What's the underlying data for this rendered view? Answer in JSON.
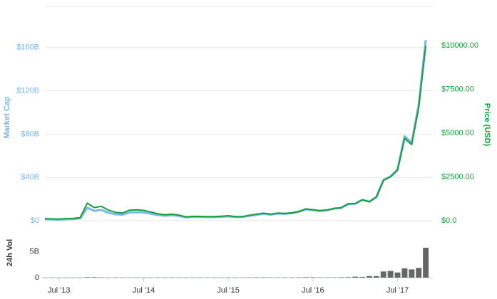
{
  "chart_data": [
    {
      "type": "line",
      "ylabel": "Market Cap",
      "y2label": "Price (USD)",
      "x": [
        "2013-05",
        "2013-06",
        "2013-07",
        "2013-08",
        "2013-09",
        "2013-10",
        "2013-11",
        "2013-12",
        "2014-01",
        "2014-02",
        "2014-03",
        "2014-04",
        "2014-05",
        "2014-06",
        "2014-07",
        "2014-08",
        "2014-09",
        "2014-10",
        "2014-11",
        "2014-12",
        "2015-01",
        "2015-02",
        "2015-03",
        "2015-04",
        "2015-05",
        "2015-06",
        "2015-07",
        "2015-08",
        "2015-09",
        "2015-10",
        "2015-11",
        "2015-12",
        "2016-01",
        "2016-02",
        "2016-03",
        "2016-04",
        "2016-05",
        "2016-06",
        "2016-07",
        "2016-08",
        "2016-09",
        "2016-10",
        "2016-11",
        "2016-12",
        "2017-01",
        "2017-02",
        "2017-03",
        "2017-04",
        "2017-05",
        "2017-06",
        "2017-07",
        "2017-08",
        "2017-09",
        "2017-10",
        "2017-11"
      ],
      "series": [
        {
          "color": "#7cb5ec",
          "axis": "y",
          "values": [
            1.3,
            1.1,
            1.0,
            1.4,
            1.5,
            2.1,
            12,
            9.1,
            10,
            7.4,
            6,
            5.5,
            7.6,
            7.9,
            7.6,
            6.5,
            5.2,
            4.6,
            5.0,
            4.4,
            3.0,
            3.5,
            3.4,
            3.2,
            3.3,
            3.6,
            4.1,
            3.3,
            3.4,
            4.5,
            5.4,
            6.4,
            5.6,
            6.6,
            6.3,
            6.9,
            8.2,
            10.5,
            9.8,
            9.1,
            9.7,
            11.2,
            11.8,
            15.4,
            15.7,
            19.3,
            17.6,
            22,
            37.7,
            41,
            47.5,
            78,
            72,
            107.5,
            167
          ]
        },
        {
          "color": "#15a03c",
          "axis": "y2",
          "values": [
            120,
            100,
            90,
            120,
            130,
            180,
            1000,
            750,
            820,
            600,
            480,
            440,
            600,
            620,
            590,
            500,
            390,
            340,
            370,
            320,
            220,
            250,
            245,
            230,
            235,
            255,
            285,
            230,
            235,
            310,
            370,
            430,
            370,
            435,
            415,
            450,
            530,
            670,
            625,
            575,
            610,
            700,
            740,
            960,
            970,
            1190,
            1080,
            1350,
            2300,
            2500,
            2875,
            4700,
            4340,
            6450,
            10000
          ]
        }
      ],
      "xlim": [
        "2013-05",
        "2017-12"
      ],
      "xticks": [
        {
          "value": "2013-07",
          "label": "Jul '13"
        },
        {
          "value": "2014-07",
          "label": "Jul '14"
        },
        {
          "value": "2015-07",
          "label": "Jul '15"
        },
        {
          "value": "2016-07",
          "label": "Jul '16"
        },
        {
          "value": "2017-07",
          "label": "Jul '17"
        }
      ],
      "ylim": [
        0,
        198
      ],
      "yticks": [
        {
          "value": 0,
          "label": "$0"
        },
        {
          "value": 40,
          "label": "$40B"
        },
        {
          "value": 80,
          "label": "$80B"
        },
        {
          "value": 120,
          "label": "$120B"
        },
        {
          "value": 160,
          "label": "$160B"
        }
      ],
      "y2lim": [
        0,
        12240
      ],
      "y2ticks": [
        {
          "value": 0,
          "label": "$0.0"
        },
        {
          "value": 2500,
          "label": "$2500.00"
        },
        {
          "value": 5000,
          "label": "$5000.00"
        },
        {
          "value": 7500,
          "label": "$7500.00"
        },
        {
          "value": 10000,
          "label": "$10000.00"
        }
      ],
      "grid": true
    },
    {
      "type": "bar",
      "ylabel": "24h Vol",
      "x": [
        "2013-05",
        "2013-06",
        "2013-07",
        "2013-08",
        "2013-09",
        "2013-10",
        "2013-11",
        "2013-12",
        "2014-01",
        "2014-02",
        "2014-03",
        "2014-04",
        "2014-05",
        "2014-06",
        "2014-07",
        "2014-08",
        "2014-09",
        "2014-10",
        "2014-11",
        "2014-12",
        "2015-01",
        "2015-02",
        "2015-03",
        "2015-04",
        "2015-05",
        "2015-06",
        "2015-07",
        "2015-08",
        "2015-09",
        "2015-10",
        "2015-11",
        "2015-12",
        "2016-01",
        "2016-02",
        "2016-03",
        "2016-04",
        "2016-05",
        "2016-06",
        "2016-07",
        "2016-08",
        "2016-09",
        "2016-10",
        "2016-11",
        "2016-12",
        "2017-01",
        "2017-02",
        "2017-03",
        "2017-04",
        "2017-05",
        "2017-06",
        "2017-07",
        "2017-08",
        "2017-09",
        "2017-10",
        "2017-11"
      ],
      "series": [
        {
          "color": "#666666",
          "values": [
            0.01,
            0.01,
            0.01,
            0.01,
            0.01,
            0.02,
            0.1,
            0.1,
            0.04,
            0.03,
            0.03,
            0.03,
            0.03,
            0.03,
            0.02,
            0.02,
            0.03,
            0.03,
            0.03,
            0.02,
            0.04,
            0.03,
            0.03,
            0.03,
            0.02,
            0.02,
            0.03,
            0.03,
            0.03,
            0.04,
            0.08,
            0.06,
            0.05,
            0.05,
            0.04,
            0.04,
            0.06,
            0.1,
            0.08,
            0.06,
            0.05,
            0.06,
            0.08,
            0.1,
            0.2,
            0.15,
            0.3,
            0.3,
            1.2,
            1.3,
            1.0,
            1.8,
            1.6,
            1.9,
            5.8
          ]
        }
      ],
      "xlim": [
        "2013-05",
        "2017-12"
      ],
      "ylim": [
        0,
        9.4
      ],
      "yticks": [
        0,
        {
          "value": 5,
          "label": "5B"
        }
      ],
      "grid": false
    }
  ]
}
